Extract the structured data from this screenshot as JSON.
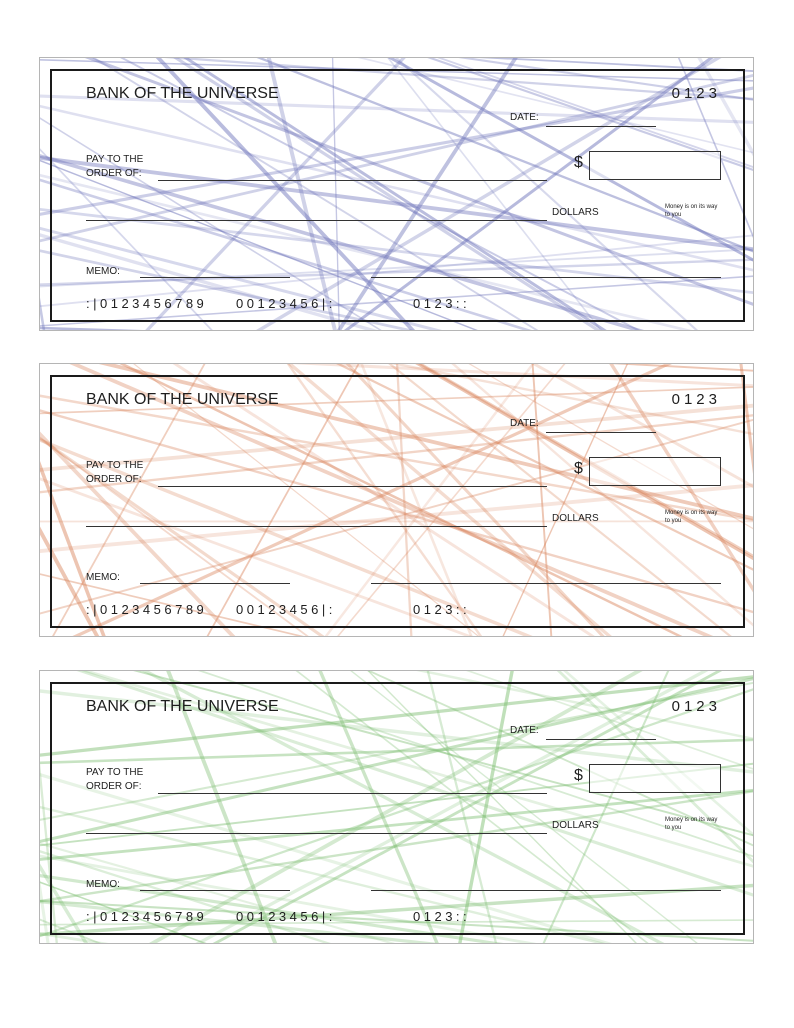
{
  "checks": [
    {
      "bank_name": "BANK OF THE UNIVERSE",
      "check_number": "0123",
      "date_label": "DATE:",
      "pay_to_line1": "PAY TO THE",
      "pay_to_line2": "ORDER OF:",
      "currency_symbol": "$",
      "dollars_label": "DOLLARS",
      "slogan": "Money is on its way to you",
      "memo_label": "MEMO:",
      "micr_routing": ":|0123456789",
      "micr_account": "00123456|:",
      "micr_check": "0123::",
      "pattern_color": "#6d73b9"
    },
    {
      "bank_name": "BANK OF THE UNIVERSE",
      "check_number": "0123",
      "date_label": "DATE:",
      "pay_to_line1": "PAY TO THE",
      "pay_to_line2": "ORDER OF:",
      "currency_symbol": "$",
      "dollars_label": "DOLLARS",
      "slogan": "Money is on its way to you",
      "memo_label": "MEMO:",
      "micr_routing": ":|0123456789",
      "micr_account": "00123456|:",
      "micr_check": "0123::",
      "pattern_color": "#d9865e"
    },
    {
      "bank_name": "BANK OF THE UNIVERSE",
      "check_number": "0123",
      "date_label": "DATE:",
      "pay_to_line1": "PAY TO THE",
      "pay_to_line2": "ORDER OF:",
      "currency_symbol": "$",
      "dollars_label": "DOLLARS",
      "slogan": "Money is on its way to you",
      "memo_label": "MEMO:",
      "micr_routing": ":|0123456789",
      "micr_account": "00123456|:",
      "micr_check": "0123::",
      "pattern_color": "#7fbf73"
    }
  ]
}
